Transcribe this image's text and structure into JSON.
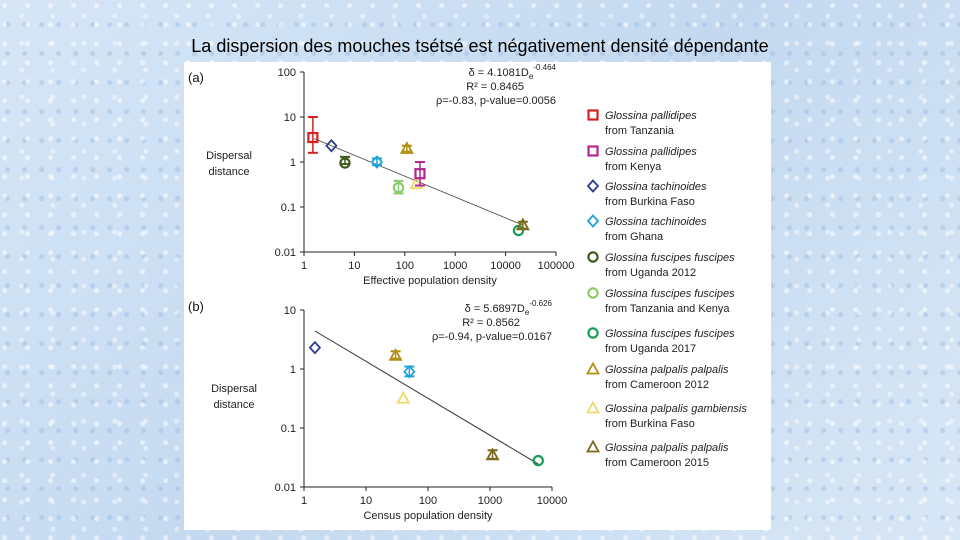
{
  "slide": {
    "title": "La dispersion des mouches tsétsé est négativement densité dépendante"
  },
  "colors": {
    "G. pallidipes Tanzania": "#d62020",
    "G. pallidipes Kenya": "#b4268f",
    "G. tachinoides Burkina Faso": "#2a3f8f",
    "G. tachinoides Ghana": "#1fa3d8",
    "G. f. fuscipes Uganda 2012": "#3e5a1c",
    "G. f. fuscipes Tanzania and Kenya": "#8ccb6b",
    "G. f. fuscipes Uganda 2017": "#159e58",
    "G. p. palpalis Cameroon 2012": "#b39010",
    "G. p. gambiensis Burkina Faso": "#f0da6a",
    "G. p. palpalis Cameroon 2015": "#7a6a1a",
    "regression": "#444444"
  },
  "legend": [
    {
      "species": "Glossina pallidipes",
      "origin": "from Tanzania",
      "marker": "square",
      "color": "#d62020"
    },
    {
      "species": "Glossina pallidipes",
      "origin": "from Kenya",
      "marker": "square",
      "color": "#b4268f"
    },
    {
      "species": "Glossina tachinoides",
      "origin": "from Burkina Faso",
      "marker": "diamond",
      "color": "#2a3f8f"
    },
    {
      "species": "Glossina tachinoides",
      "origin": "from Ghana",
      "marker": "diamond",
      "color": "#1fa3d8"
    },
    {
      "species": "Glossina fuscipes fuscipes",
      "origin": "from Uganda 2012",
      "marker": "circle",
      "color": "#3e5a1c"
    },
    {
      "species": "Glossina fuscipes fuscipes",
      "origin": "from Tanzania and Kenya",
      "marker": "circle",
      "color": "#8ccb6b"
    },
    {
      "species": "Glossina fuscipes fuscipes",
      "origin": "from Uganda 2017",
      "marker": "circle",
      "color": "#159e58"
    },
    {
      "species": "Glossina palpalis palpalis",
      "origin": "from Cameroon 2012",
      "marker": "triangle",
      "color": "#b39010"
    },
    {
      "species": "Glossina palpalis gambiensis",
      "origin": "from Burkina Faso",
      "marker": "triangle",
      "color": "#f0da6a"
    },
    {
      "species": "Glossina palpalis palpalis",
      "origin": "from Cameroon 2015",
      "marker": "triangle",
      "color": "#7a6a1a"
    }
  ],
  "chart_data": [
    {
      "type": "scatter",
      "panel_label": "(a)",
      "xlabel": "Effective population density",
      "ylabel_lines": [
        "Dispersal",
        "distance"
      ],
      "x_scale": "log",
      "y_scale": "log",
      "xlim": [
        1,
        100000
      ],
      "ylim": [
        0.01,
        100
      ],
      "x_ticks": [
        "1",
        "10",
        "100",
        "1000",
        "10000",
        "100000"
      ],
      "y_ticks": [
        "0.01",
        "0.1",
        "1",
        "10",
        "100"
      ],
      "annotation": {
        "eq_prefix": "δ = 4.1081D",
        "eq_sub": "e",
        "eq_sup": "-0.464",
        "r2": "R² = 0.8465",
        "rho": "ρ=-0.83, p-value=0.0056"
      },
      "regression": {
        "coef": 4.1081,
        "exponent": -0.464,
        "x_range": [
          1.6,
          22000
        ]
      },
      "series": [
        {
          "name": "Glossina pallidipes from Tanzania",
          "marker": "square",
          "color": "#d62020",
          "points": [
            {
              "x": 1.5,
              "y": 3.5,
              "err_low": 1.6,
              "err_high": 10
            }
          ]
        },
        {
          "name": "Glossina tachinoides from Burkina Faso",
          "marker": "diamond",
          "color": "#2a3f8f",
          "points": [
            {
              "x": 3.5,
              "y": 2.3
            }
          ]
        },
        {
          "name": "Glossina fuscipes fuscipes from Uganda 2012",
          "marker": "circle",
          "color": "#3e5a1c",
          "points": [
            {
              "x": 6.5,
              "y": 0.95,
              "err_low": 0.9,
              "err_high": 1.3
            }
          ]
        },
        {
          "name": "Glossina tachinoides from Ghana",
          "marker": "diamond",
          "color": "#1fa3d8",
          "points": [
            {
              "x": 28,
              "y": 1.0,
              "err_low": 0.85,
              "err_high": 1.2
            }
          ]
        },
        {
          "name": "Glossina fuscipes fuscipes from Tanzania and Kenya",
          "marker": "circle",
          "color": "#8ccb6b",
          "points": [
            {
              "x": 75,
              "y": 0.27,
              "err_low": 0.2,
              "err_high": 0.38
            }
          ]
        },
        {
          "name": "Glossina palpalis palpalis from Cameroon 2012",
          "marker": "triangle",
          "color": "#b39010",
          "points": [
            {
              "x": 110,
              "y": 2.0,
              "err_low": 1.7,
              "err_high": 2.3
            }
          ]
        },
        {
          "name": "Glossina palpalis gambiensis from Burkina Faso",
          "marker": "triangle",
          "color": "#f0da6a",
          "points": [
            {
              "x": 170,
              "y": 0.33
            }
          ]
        },
        {
          "name": "Glossina pallidipes from Kenya",
          "marker": "square",
          "color": "#b4268f",
          "points": [
            {
              "x": 200,
              "y": 0.55,
              "err_low": 0.3,
              "err_high": 1.0
            }
          ]
        },
        {
          "name": "Glossina fuscipes fuscipes from Uganda 2017",
          "marker": "circle",
          "color": "#159e58",
          "points": [
            {
              "x": 18000,
              "y": 0.03
            }
          ]
        },
        {
          "name": "Glossina palpalis palpalis from Cameroon 2015",
          "marker": "triangle",
          "color": "#7a6a1a",
          "points": [
            {
              "x": 22000,
              "y": 0.04,
              "err_low": 0.033,
              "err_high": 0.047
            }
          ]
        }
      ]
    },
    {
      "type": "scatter",
      "panel_label": "(b)",
      "xlabel": "Census population density",
      "ylabel_lines": [
        "Dispersal",
        "distance"
      ],
      "x_scale": "log",
      "y_scale": "log",
      "xlim": [
        1,
        10000
      ],
      "ylim": [
        0.01,
        10
      ],
      "x_ticks": [
        "1",
        "10",
        "100",
        "1000",
        "10000"
      ],
      "y_ticks": [
        "0.01",
        "0.1",
        "1",
        "10"
      ],
      "annotation": {
        "eq_prefix": "δ = 5.6897D",
        "eq_sub": "e",
        "eq_sup": "-0.626",
        "r2": "R² = 0.8562",
        "rho": "ρ=-0.94, p-value=0.0167"
      },
      "regression": {
        "coef": 5.6897,
        "exponent": -0.626,
        "x_range": [
          1.5,
          6000
        ]
      },
      "series": [
        {
          "name": "Glossina tachinoides from Burkina Faso",
          "marker": "diamond",
          "color": "#2a3f8f",
          "points": [
            {
              "x": 1.5,
              "y": 2.3
            }
          ]
        },
        {
          "name": "Glossina palpalis palpalis from Cameroon 2012",
          "marker": "triangle",
          "color": "#b39010",
          "points": [
            {
              "x": 30,
              "y": 1.7,
              "err_low": 1.5,
              "err_high": 2.0
            }
          ]
        },
        {
          "name": "Glossina tachinoides from Ghana",
          "marker": "diamond",
          "color": "#1fa3d8",
          "points": [
            {
              "x": 50,
              "y": 0.9,
              "err_low": 0.75,
              "err_high": 1.1
            }
          ]
        },
        {
          "name": "Glossina palpalis gambiensis from Burkina Faso",
          "marker": "triangle",
          "color": "#f0da6a",
          "points": [
            {
              "x": 40,
              "y": 0.32
            }
          ]
        },
        {
          "name": "Glossina palpalis palpalis from Cameroon 2015",
          "marker": "triangle",
          "color": "#7a6a1a",
          "points": [
            {
              "x": 1100,
              "y": 0.035,
              "err_low": 0.03,
              "err_high": 0.042
            }
          ]
        },
        {
          "name": "Glossina fuscipes fuscipes from Uganda 2017",
          "marker": "circle",
          "color": "#159e58",
          "points": [
            {
              "x": 6000,
              "y": 0.028
            }
          ]
        }
      ]
    }
  ]
}
